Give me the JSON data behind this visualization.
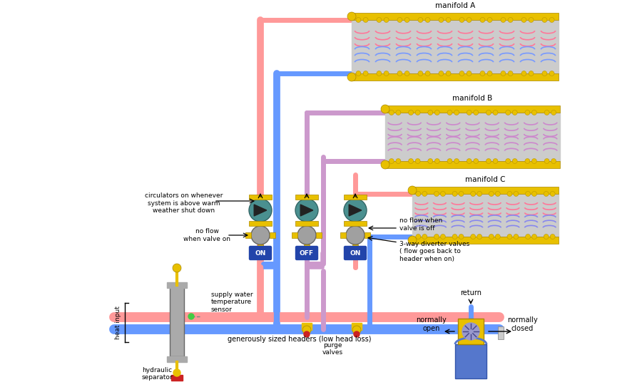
{
  "bg_color": "#ffffff",
  "pink": "#FF9999",
  "blue": "#6699FF",
  "lavender": "#CC99CC",
  "yellow": "#D4A800",
  "yellow_fill": "#E8C000",
  "gray": "#A0A0A0",
  "gray_light": "#CCCCCC",
  "teal": "#4A9090",
  "dark_blue_btn": "#2244AA",
  "manifold_labels": [
    "manifold A",
    "manifold B",
    "manifold C"
  ],
  "annotations": [
    "circulators on whenever\nsystem is above warm\nweather shut down",
    "no flow\nwhen valve on",
    "no flow when\nvalve is off",
    "3-way diverter valves\n( flow goes back to\nheader when on)",
    "supply water\ntemperature\nsensor",
    "generously sized headers (low head loss)",
    "hydraulic\nseparator",
    "heat input",
    "purge\nvalves",
    "return",
    "normally\nopen",
    "normally\nclosed"
  ]
}
